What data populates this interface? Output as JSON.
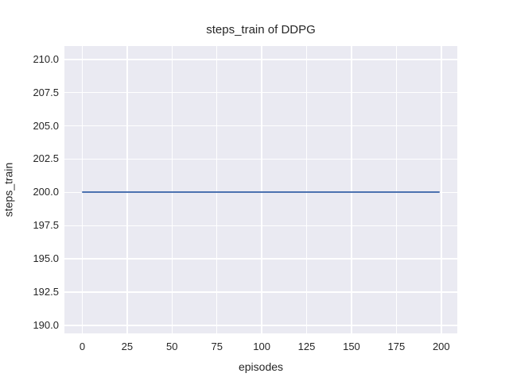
{
  "figure": {
    "background_color": "#ffffff",
    "plot_background_color": "#eaeaf2",
    "gridline_color": "#ffffff",
    "text_color": "#262626"
  },
  "chart_data": {
    "type": "line",
    "title": "steps_train of DDPG",
    "xlabel": "episodes",
    "ylabel": "steps_train",
    "grid": true,
    "legend_position": "none",
    "xlim": [
      -9.95,
      208.95
    ],
    "ylim": [
      189.4,
      211.0
    ],
    "xticks": [
      0,
      25,
      50,
      75,
      100,
      125,
      150,
      175,
      200
    ],
    "xtick_labels": [
      "0",
      "25",
      "50",
      "75",
      "100",
      "125",
      "150",
      "175",
      "200"
    ],
    "yticks": [
      190,
      192.5,
      195,
      197.5,
      200,
      202.5,
      205,
      207.5,
      210
    ],
    "ytick_labels": [
      "190.0",
      "192.5",
      "195.0",
      "197.5",
      "200.0",
      "202.5",
      "205.0",
      "207.5",
      "210.0"
    ],
    "series": [
      {
        "name": "steps_train",
        "color": "#4c72b0",
        "x": [
          0,
          199
        ],
        "y": [
          200,
          200
        ],
        "constant_value": 200
      }
    ]
  }
}
